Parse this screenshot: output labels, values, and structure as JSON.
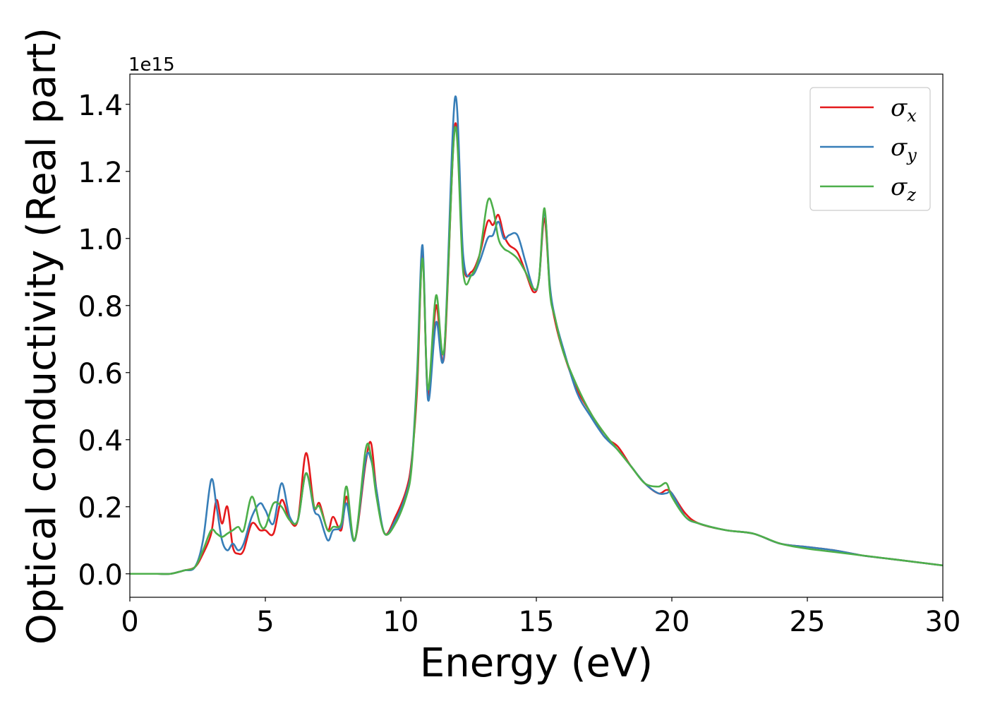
{
  "chart_data": {
    "type": "line",
    "title": "",
    "xlabel": "Energy (eV)",
    "ylabel": "Optical conductivity (Real part)",
    "y_offset_label": "1e15",
    "xlim": [
      0,
      30
    ],
    "ylim": [
      -0.07,
      1.49
    ],
    "y_scale_multiplier": 1000000000000000.0,
    "x_ticks": [
      0,
      5,
      10,
      15,
      20,
      25,
      30
    ],
    "x_tick_labels": [
      "0",
      "5",
      "10",
      "15",
      "20",
      "25",
      "30"
    ],
    "y_ticks": [
      0.0,
      0.2,
      0.4,
      0.6,
      0.8,
      1.0,
      1.2,
      1.4
    ],
    "y_tick_labels": [
      "0.0",
      "0.2",
      "0.4",
      "0.6",
      "0.8",
      "1.0",
      "1.2",
      "1.4"
    ],
    "grid": false,
    "legend_position": "top-right",
    "series": [
      {
        "name": "σ",
        "subscript": "x",
        "color": "#e41a1c",
        "x": [
          0,
          0.5,
          1,
          1.5,
          2,
          2.4,
          2.7,
          3,
          3.2,
          3.4,
          3.6,
          3.8,
          4,
          4.2,
          4.5,
          4.8,
          5,
          5.3,
          5.6,
          5.9,
          6.2,
          6.5,
          6.8,
          7,
          7.3,
          7.5,
          7.8,
          8,
          8.3,
          8.7,
          8.9,
          9.1,
          9.4,
          9.8,
          10.2,
          10.4,
          10.6,
          10.8,
          11,
          11.3,
          11.6,
          12,
          12.3,
          12.6,
          12.9,
          13.2,
          13.4,
          13.6,
          13.8,
          14,
          14.3,
          14.6,
          14.9,
          15.1,
          15.3,
          15.5,
          15.7,
          16,
          16.5,
          17,
          17.5,
          18,
          18.5,
          19,
          19.5,
          19.8,
          20,
          20.5,
          21,
          22,
          23,
          24,
          25,
          26,
          27,
          28,
          29,
          30
        ],
        "y": [
          0,
          0,
          0,
          0,
          0.01,
          0.02,
          0.06,
          0.12,
          0.22,
          0.15,
          0.2,
          0.08,
          0.06,
          0.07,
          0.15,
          0.13,
          0.13,
          0.12,
          0.22,
          0.16,
          0.16,
          0.36,
          0.2,
          0.21,
          0.13,
          0.17,
          0.13,
          0.23,
          0.1,
          0.33,
          0.39,
          0.25,
          0.12,
          0.17,
          0.25,
          0.34,
          0.55,
          0.95,
          0.53,
          0.8,
          0.65,
          1.34,
          0.93,
          0.9,
          0.95,
          1.05,
          1.04,
          1.07,
          1.01,
          0.98,
          0.96,
          0.9,
          0.84,
          0.88,
          1.06,
          0.85,
          0.75,
          0.66,
          0.55,
          0.48,
          0.41,
          0.38,
          0.32,
          0.27,
          0.24,
          0.25,
          0.24,
          0.18,
          0.15,
          0.13,
          0.12,
          0.09,
          0.08,
          0.07,
          0.055,
          0.045,
          0.035,
          0.025
        ]
      },
      {
        "name": "σ",
        "subscript": "y",
        "color": "#377eb8",
        "x": [
          0,
          0.5,
          1,
          1.5,
          2,
          2.4,
          2.7,
          3,
          3.2,
          3.4,
          3.6,
          3.8,
          4,
          4.2,
          4.5,
          4.8,
          5,
          5.3,
          5.6,
          5.9,
          6.2,
          6.5,
          6.8,
          7,
          7.3,
          7.5,
          7.8,
          8,
          8.3,
          8.7,
          8.9,
          9.1,
          9.4,
          9.8,
          10.2,
          10.4,
          10.6,
          10.8,
          11,
          11.3,
          11.6,
          12,
          12.3,
          12.6,
          12.9,
          13.2,
          13.4,
          13.6,
          13.8,
          14,
          14.3,
          14.6,
          14.9,
          15.1,
          15.3,
          15.5,
          15.7,
          16,
          16.5,
          17,
          17.5,
          18,
          18.5,
          19,
          19.5,
          19.8,
          20,
          20.5,
          21,
          22,
          23,
          24,
          25,
          26,
          27,
          28,
          29,
          30
        ],
        "y": [
          0,
          0,
          0,
          0,
          0.01,
          0.02,
          0.1,
          0.28,
          0.2,
          0.1,
          0.07,
          0.09,
          0.07,
          0.09,
          0.17,
          0.21,
          0.19,
          0.15,
          0.27,
          0.17,
          0.16,
          0.3,
          0.19,
          0.17,
          0.1,
          0.13,
          0.14,
          0.21,
          0.1,
          0.34,
          0.34,
          0.25,
          0.12,
          0.16,
          0.24,
          0.33,
          0.6,
          0.98,
          0.52,
          0.75,
          0.66,
          1.42,
          0.95,
          0.89,
          0.93,
          1.0,
          1.01,
          1.05,
          1.0,
          1.01,
          1.01,
          0.93,
          0.85,
          0.88,
          1.08,
          0.86,
          0.76,
          0.67,
          0.54,
          0.47,
          0.41,
          0.37,
          0.32,
          0.27,
          0.24,
          0.24,
          0.24,
          0.17,
          0.15,
          0.13,
          0.12,
          0.09,
          0.08,
          0.07,
          0.055,
          0.045,
          0.035,
          0.025
        ]
      },
      {
        "name": "σ",
        "subscript": "z",
        "color": "#4daf4a",
        "x": [
          0,
          0.5,
          1,
          1.5,
          2,
          2.4,
          2.7,
          3,
          3.2,
          3.4,
          3.6,
          3.8,
          4,
          4.2,
          4.5,
          4.8,
          5,
          5.3,
          5.6,
          5.9,
          6.2,
          6.5,
          6.8,
          7,
          7.3,
          7.5,
          7.8,
          8,
          8.3,
          8.7,
          8.9,
          9.1,
          9.4,
          9.8,
          10.2,
          10.4,
          10.6,
          10.8,
          11,
          11.3,
          11.6,
          12,
          12.3,
          12.6,
          12.9,
          13.2,
          13.4,
          13.6,
          13.8,
          14,
          14.3,
          14.6,
          14.9,
          15.1,
          15.3,
          15.5,
          15.7,
          16,
          16.5,
          17,
          17.5,
          18,
          18.5,
          19,
          19.5,
          19.8,
          20,
          20.5,
          21,
          22,
          23,
          24,
          25,
          26,
          27,
          28,
          29,
          30
        ],
        "y": [
          0,
          0,
          0,
          0,
          0.01,
          0.02,
          0.07,
          0.13,
          0.12,
          0.11,
          0.12,
          0.13,
          0.14,
          0.13,
          0.23,
          0.15,
          0.14,
          0.21,
          0.2,
          0.16,
          0.16,
          0.3,
          0.2,
          0.2,
          0.13,
          0.14,
          0.15,
          0.26,
          0.1,
          0.37,
          0.35,
          0.23,
          0.12,
          0.15,
          0.23,
          0.32,
          0.58,
          0.94,
          0.55,
          0.83,
          0.67,
          1.33,
          0.9,
          0.89,
          0.95,
          1.11,
          1.09,
          1.0,
          0.97,
          0.96,
          0.94,
          0.9,
          0.85,
          0.88,
          1.09,
          0.84,
          0.76,
          0.66,
          0.56,
          0.48,
          0.42,
          0.37,
          0.32,
          0.27,
          0.26,
          0.27,
          0.23,
          0.17,
          0.15,
          0.13,
          0.12,
          0.09,
          0.075,
          0.065,
          0.055,
          0.045,
          0.035,
          0.025
        ]
      }
    ]
  }
}
